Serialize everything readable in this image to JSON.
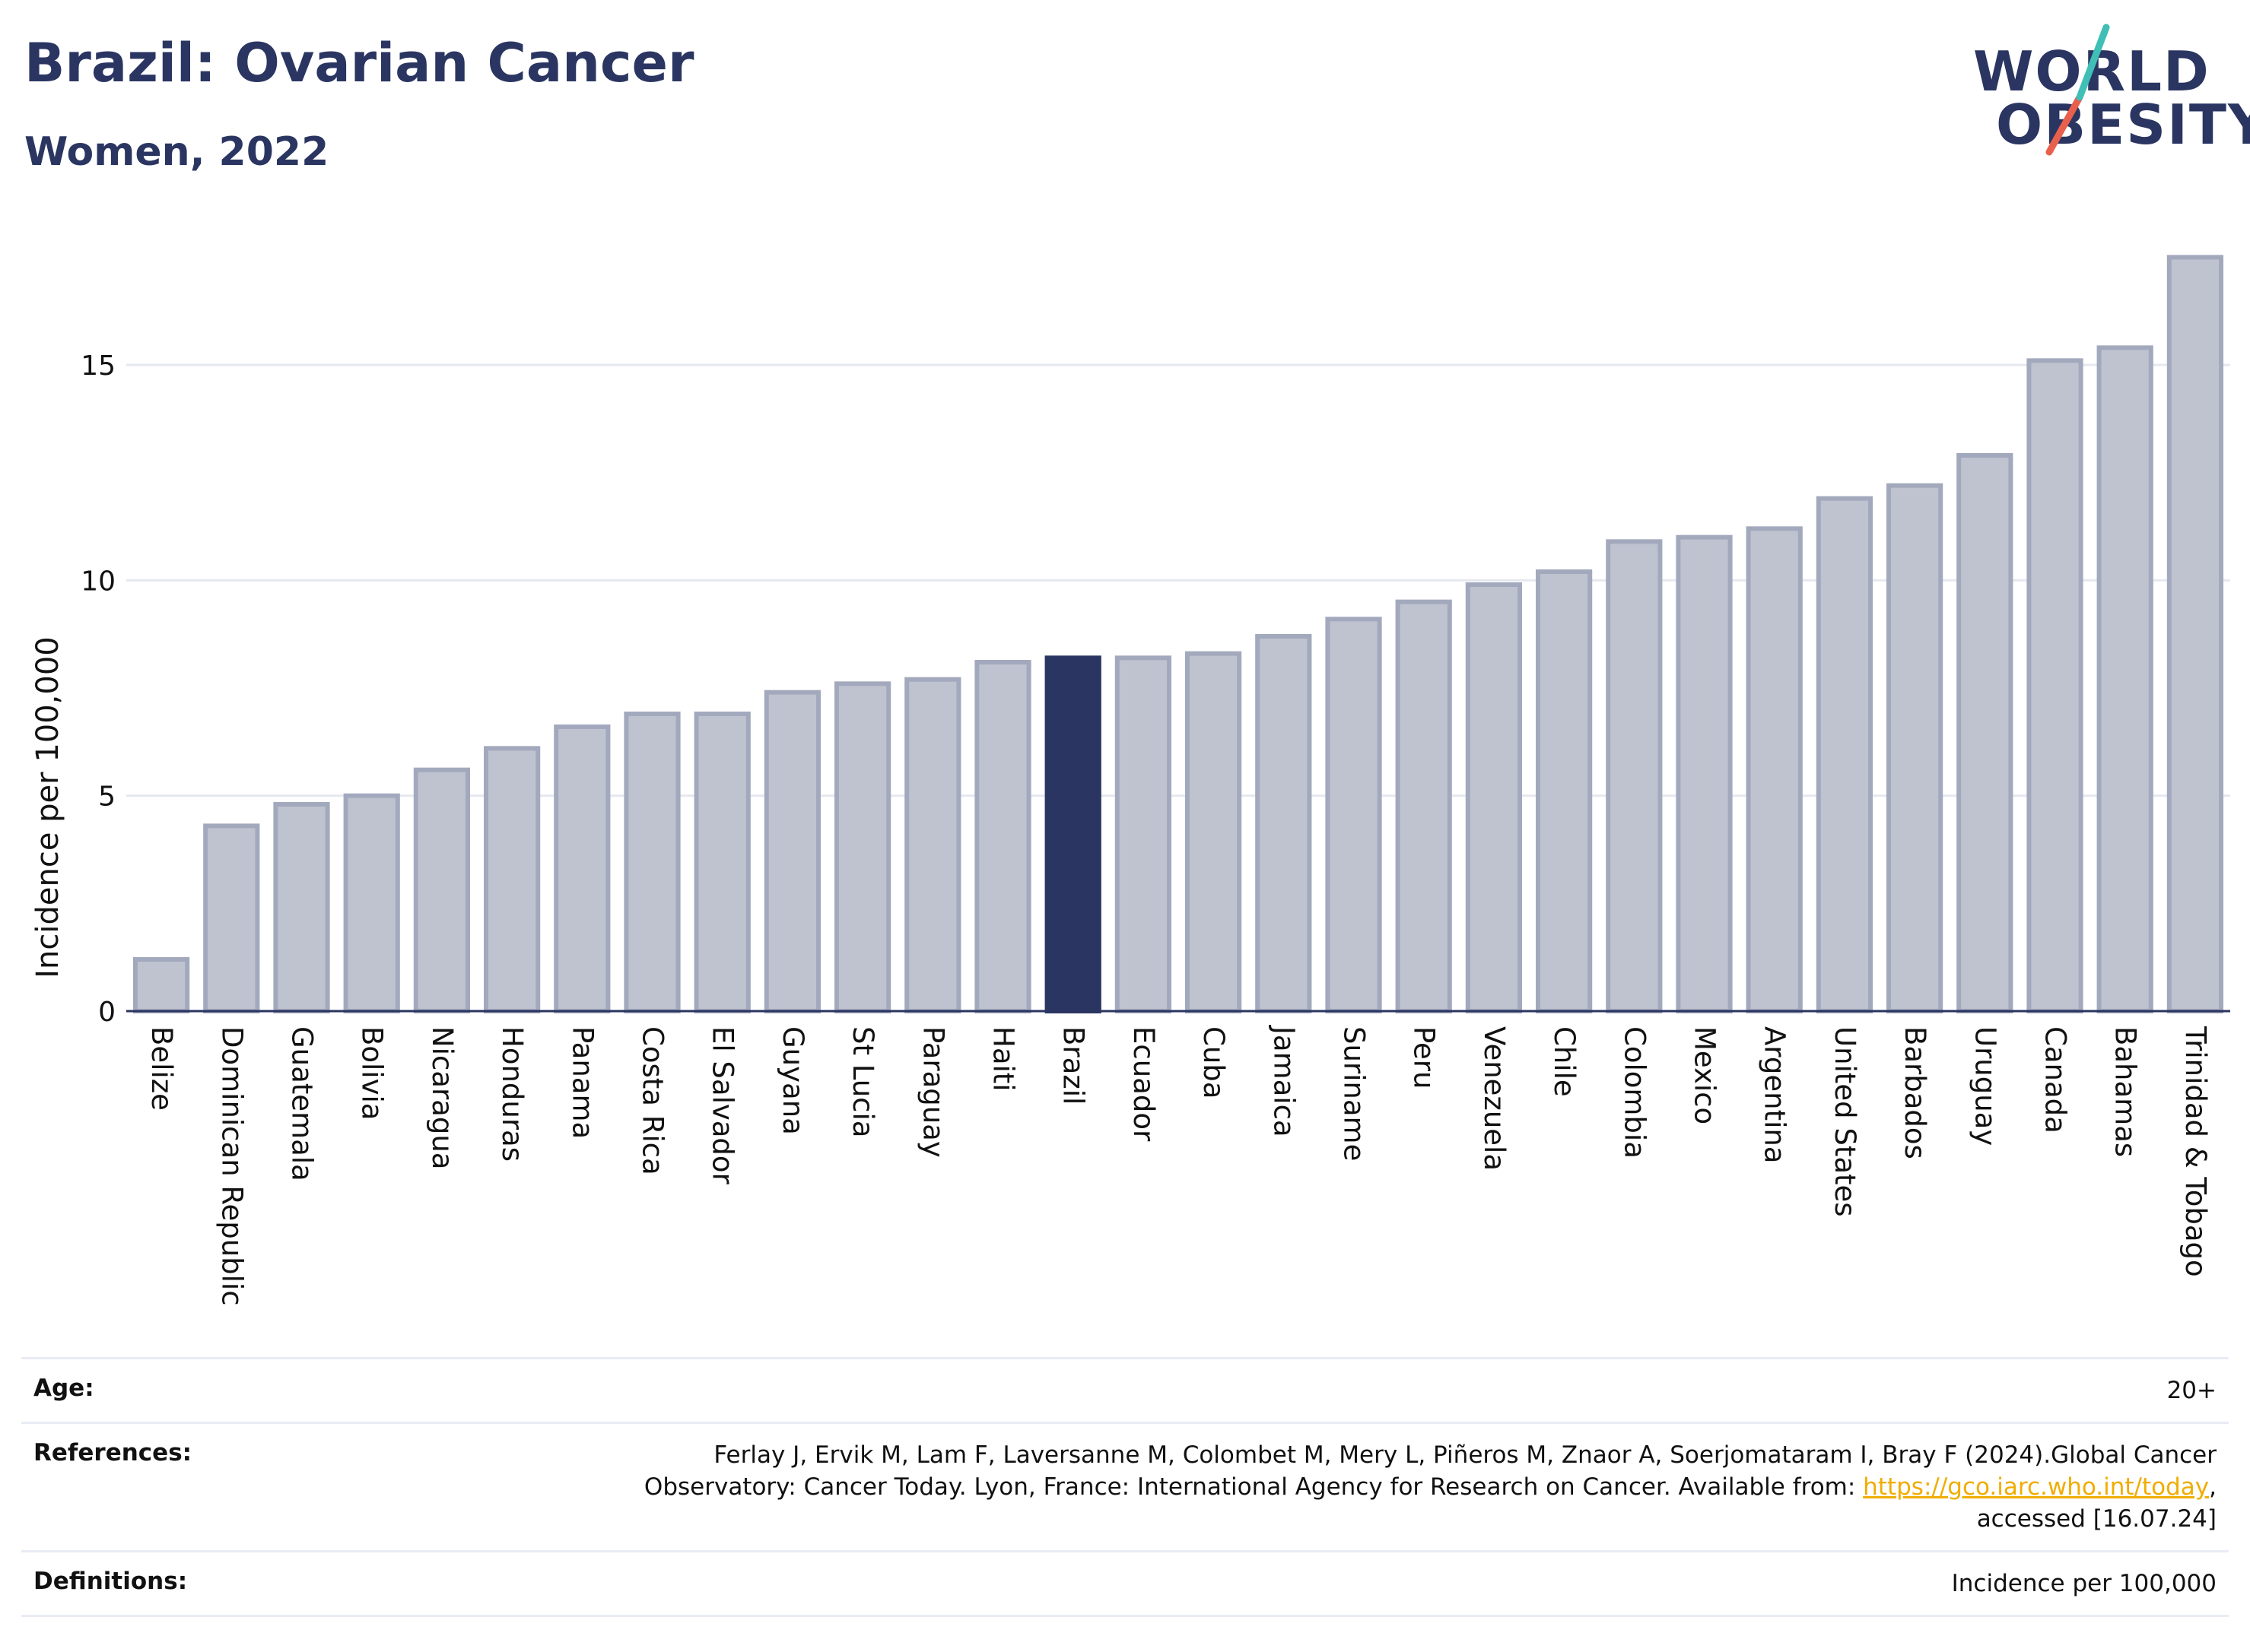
{
  "header": {
    "title": "Brazil: Ovarian Cancer",
    "subtitle": "Women, 2022"
  },
  "logo": {
    "line1": "WORLD",
    "line2": "OBESITY",
    "colors": {
      "text": "#2a3561",
      "slash_top": "#3fbfb6",
      "slash_bottom": "#e8604c"
    }
  },
  "chart_data": {
    "type": "bar",
    "categories": [
      "Belize",
      "Dominican Republic",
      "Guatemala",
      "Bolivia",
      "Nicaragua",
      "Honduras",
      "Panama",
      "Costa Rica",
      "El Salvador",
      "Guyana",
      "St Lucia",
      "Paraguay",
      "Haiti",
      "Brazil",
      "Ecuador",
      "Cuba",
      "Jamaica",
      "Suriname",
      "Peru",
      "Venezuela",
      "Chile",
      "Colombia",
      "Mexico",
      "Argentina",
      "United States",
      "Barbados",
      "Uruguay",
      "Canada",
      "Bahamas",
      "Trinidad & Tobago"
    ],
    "values": [
      1.2,
      4.3,
      4.8,
      5.0,
      5.6,
      6.1,
      6.6,
      6.9,
      6.9,
      7.4,
      7.6,
      7.7,
      8.1,
      8.2,
      8.2,
      8.3,
      8.7,
      9.1,
      9.5,
      9.9,
      10.2,
      10.9,
      11.0,
      11.2,
      11.9,
      12.2,
      12.9,
      15.1,
      15.4,
      17.5
    ],
    "highlight": "Brazil",
    "ylabel": "Incidence per 100,000",
    "xlabel": "",
    "ylim": [
      0,
      18
    ],
    "yticks": [
      0,
      5,
      10,
      15
    ],
    "grid": true,
    "colors": {
      "bar": "#bfc3d0",
      "bar_border": "#a3a9bd",
      "highlight": "#2a3561",
      "grid": "#e6e8ef",
      "axis": "#2a3561"
    }
  },
  "footer": {
    "age_label": "Age:",
    "age_value": "20+",
    "references_label": "References:",
    "references_line1": "Ferlay J, Ervik M, Lam F, Laversanne M, Colombet M, Mery L, Piñeros M, Znaor A, Soerjomataram I, Bray F (2024).Global Cancer",
    "references_line2": "Observatory: Cancer Today. Lyon, France: International Agency for Research on Cancer. Available from: ",
    "references_link": "https://gco.iarc.who.int/today",
    "references_line2_end": ",",
    "references_line3": "accessed [16.07.24]",
    "definitions_label": "Definitions:",
    "definitions_value": "Incidence per 100,000"
  }
}
